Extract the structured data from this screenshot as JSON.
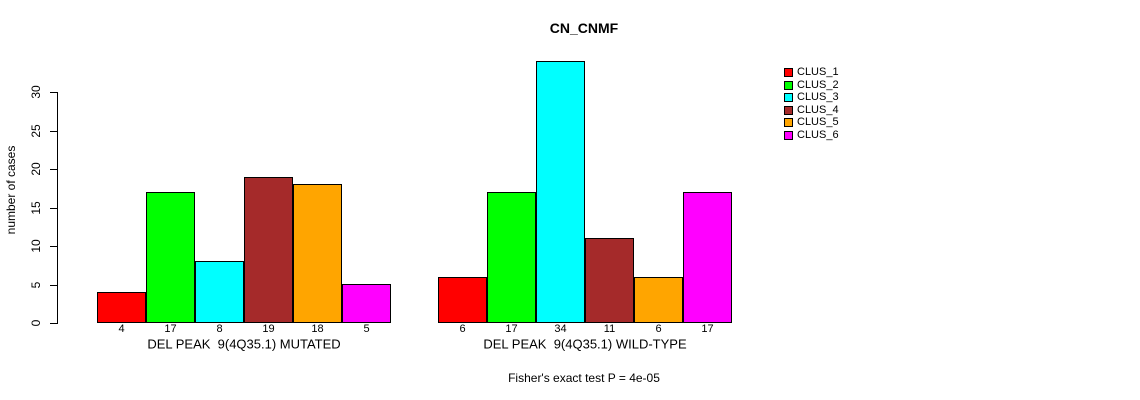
{
  "chart_data": {
    "type": "bar",
    "title": "CN_CNMF",
    "ylabel": "number of cases",
    "ylim": [
      0,
      30
    ],
    "yticks": [
      0,
      5,
      10,
      15,
      20,
      25,
      30
    ],
    "grid": false,
    "legend_position": "top-right",
    "groups": [
      {
        "label": "DEL PEAK  9(4Q35.1) MUTATED",
        "values": [
          4,
          17,
          8,
          19,
          18,
          5
        ]
      },
      {
        "label": "DEL PEAK  9(4Q35.1) WILD-TYPE",
        "values": [
          6,
          17,
          34,
          11,
          6,
          17
        ]
      }
    ],
    "series": [
      {
        "name": "CLUS_1",
        "color": "#FF0000",
        "values": [
          4,
          6
        ]
      },
      {
        "name": "CLUS_2",
        "color": "#00FF00",
        "values": [
          17,
          17
        ]
      },
      {
        "name": "CLUS_3",
        "color": "#00FFFF",
        "values": [
          8,
          34
        ]
      },
      {
        "name": "CLUS_4",
        "color": "#A52A2A",
        "values": [
          19,
          11
        ]
      },
      {
        "name": "CLUS_5",
        "color": "#FFA500",
        "values": [
          18,
          6
        ]
      },
      {
        "name": "CLUS_6",
        "color": "#FF00FF",
        "values": [
          5,
          17
        ]
      }
    ],
    "annotation": "Fisher's exact test P = 4e-05"
  }
}
